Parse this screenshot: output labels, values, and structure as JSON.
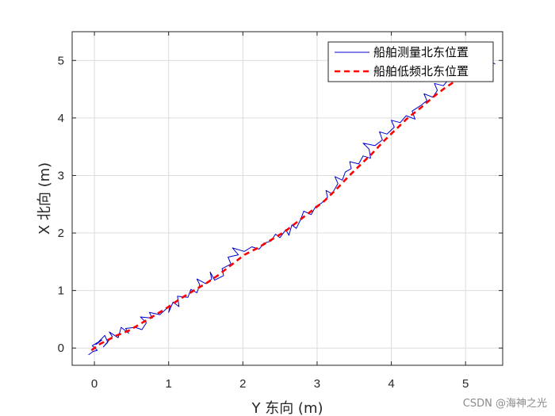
{
  "chart_data": {
    "type": "line",
    "xlabel": "Y 东向 (m)",
    "ylabel": "X 北向 (m)",
    "xlim": [
      -0.3,
      5.5
    ],
    "ylim": [
      -0.3,
      5.5
    ],
    "xticks": [
      0,
      1,
      2,
      3,
      4,
      5
    ],
    "yticks": [
      0,
      1,
      2,
      3,
      4,
      5
    ],
    "grid": true,
    "legend_position": "top-right",
    "series": [
      {
        "name": "船舶测量北东位置",
        "color": "#0000cc",
        "style": "solid",
        "points": [
          [
            -0.08,
            -0.12
          ],
          [
            -0.02,
            -0.06
          ],
          [
            0.04,
            -0.04
          ],
          [
            -0.03,
            0.04
          ],
          [
            0.1,
            0.14
          ],
          [
            0.02,
            0.06
          ],
          [
            0.14,
            0.22
          ],
          [
            0.18,
            0.1
          ],
          [
            0.12,
            0.02
          ],
          [
            0.24,
            0.2
          ],
          [
            0.2,
            0.28
          ],
          [
            0.32,
            0.18
          ],
          [
            0.36,
            0.36
          ],
          [
            0.46,
            0.26
          ],
          [
            0.42,
            0.34
          ],
          [
            0.55,
            0.36
          ],
          [
            0.64,
            0.32
          ],
          [
            0.7,
            0.44
          ],
          [
            0.62,
            0.54
          ],
          [
            0.78,
            0.52
          ],
          [
            0.74,
            0.62
          ],
          [
            0.88,
            0.58
          ],
          [
            1.02,
            0.74
          ],
          [
            1.0,
            0.62
          ],
          [
            1.06,
            0.8
          ],
          [
            1.14,
            0.72
          ],
          [
            1.12,
            0.9
          ],
          [
            1.26,
            0.88
          ],
          [
            1.3,
            1.02
          ],
          [
            1.38,
            0.96
          ],
          [
            1.42,
            1.1
          ],
          [
            1.38,
            1.2
          ],
          [
            1.5,
            1.12
          ],
          [
            1.58,
            1.2
          ],
          [
            1.56,
            1.32
          ],
          [
            1.62,
            1.18
          ],
          [
            1.74,
            1.26
          ],
          [
            1.72,
            1.38
          ],
          [
            1.84,
            1.46
          ],
          [
            1.8,
            1.58
          ],
          [
            1.94,
            1.62
          ],
          [
            1.86,
            1.74
          ],
          [
            2.02,
            1.68
          ],
          [
            2.12,
            1.76
          ],
          [
            2.22,
            1.72
          ],
          [
            2.28,
            1.82
          ],
          [
            2.38,
            1.86
          ],
          [
            2.44,
            1.98
          ],
          [
            2.5,
            1.92
          ],
          [
            2.58,
            2.06
          ],
          [
            2.62,
            1.96
          ],
          [
            2.66,
            2.14
          ],
          [
            2.72,
            2.08
          ],
          [
            2.78,
            2.24
          ],
          [
            2.82,
            2.38
          ],
          [
            2.92,
            2.32
          ],
          [
            2.98,
            2.46
          ],
          [
            3.06,
            2.52
          ],
          [
            3.14,
            2.62
          ],
          [
            3.12,
            2.74
          ],
          [
            3.2,
            2.68
          ],
          [
            3.28,
            2.86
          ],
          [
            3.24,
            2.98
          ],
          [
            3.34,
            2.92
          ],
          [
            3.38,
            3.06
          ],
          [
            3.46,
            3.12
          ],
          [
            3.44,
            3.24
          ],
          [
            3.56,
            3.2
          ],
          [
            3.62,
            3.34
          ],
          [
            3.72,
            3.3
          ],
          [
            3.7,
            3.46
          ],
          [
            3.62,
            3.56
          ],
          [
            3.78,
            3.52
          ],
          [
            3.88,
            3.62
          ],
          [
            3.84,
            3.76
          ],
          [
            3.94,
            3.72
          ],
          [
            4.04,
            3.84
          ],
          [
            4.0,
            3.96
          ],
          [
            4.12,
            3.92
          ],
          [
            4.2,
            4.04
          ],
          [
            4.32,
            3.98
          ],
          [
            4.28,
            4.12
          ],
          [
            4.4,
            4.22
          ],
          [
            4.48,
            4.3
          ],
          [
            4.44,
            4.42
          ],
          [
            4.56,
            4.36
          ],
          [
            4.62,
            4.48
          ],
          [
            4.58,
            4.6
          ],
          [
            4.7,
            4.56
          ],
          [
            4.78,
            4.68
          ],
          [
            4.74,
            4.8
          ],
          [
            4.86,
            4.76
          ],
          [
            4.94,
            4.86
          ],
          [
            5.04,
            4.82
          ],
          [
            5.1,
            4.94
          ],
          [
            5.2,
            4.9
          ],
          [
            5.32,
            4.98
          ],
          [
            5.4,
            4.94
          ]
        ]
      },
      {
        "name": "船舶低频北东位置",
        "color": "#ff0000",
        "style": "dashed",
        "points": [
          [
            -0.04,
            -0.04
          ],
          [
            0.06,
            0.06
          ],
          [
            0.18,
            0.14
          ],
          [
            0.3,
            0.22
          ],
          [
            0.46,
            0.3
          ],
          [
            0.62,
            0.42
          ],
          [
            0.8,
            0.56
          ],
          [
            0.98,
            0.7
          ],
          [
            1.16,
            0.86
          ],
          [
            1.34,
            1.0
          ],
          [
            1.5,
            1.12
          ],
          [
            1.66,
            1.26
          ],
          [
            1.84,
            1.44
          ],
          [
            2.02,
            1.62
          ],
          [
            2.2,
            1.74
          ],
          [
            2.38,
            1.88
          ],
          [
            2.56,
            2.02
          ],
          [
            2.74,
            2.2
          ],
          [
            2.92,
            2.38
          ],
          [
            3.1,
            2.56
          ],
          [
            3.26,
            2.76
          ],
          [
            3.42,
            2.98
          ],
          [
            3.58,
            3.18
          ],
          [
            3.74,
            3.38
          ],
          [
            3.9,
            3.6
          ],
          [
            4.06,
            3.8
          ],
          [
            4.22,
            4.0
          ],
          [
            4.4,
            4.18
          ],
          [
            4.56,
            4.36
          ],
          [
            4.72,
            4.52
          ],
          [
            4.86,
            4.64
          ],
          [
            5.0,
            4.76
          ]
        ]
      }
    ]
  },
  "watermark": "CSDN @海神之光"
}
